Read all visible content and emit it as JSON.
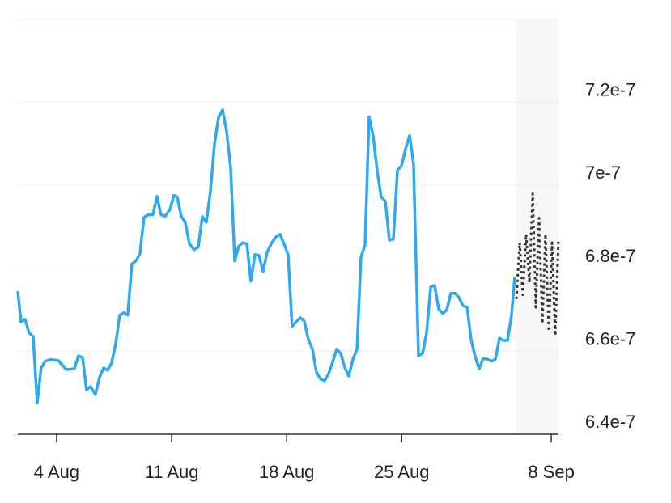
{
  "chart_data": {
    "type": "line",
    "ylim": [
      6.4e-07,
      7.4e-07
    ],
    "yticks": [
      6.4e-07,
      6.6e-07,
      6.8e-07,
      7e-07,
      7.2e-07
    ],
    "xlim": [
      -2.36,
      30.54
    ],
    "xticks": [
      {
        "value": 0,
        "label": "4 Aug"
      },
      {
        "value": 7,
        "label": "11 Aug"
      },
      {
        "value": 14,
        "label": "18 Aug"
      },
      {
        "value": 21,
        "label": "25 Aug"
      },
      {
        "value": 30.1,
        "label": "8 Sep"
      }
    ],
    "grid": true,
    "series": [
      {
        "color": "#2ea8f0",
        "line_style": "solid",
        "x": [
          -2.36,
          -2.17,
          -1.92,
          -1.67,
          -1.43,
          -1.18,
          -0.94,
          -0.69,
          -0.39,
          0.1,
          0.59,
          1.08,
          1.33,
          1.58,
          1.82,
          2.07,
          2.36,
          2.61,
          2.86,
          3.1,
          3.35,
          3.6,
          3.84,
          4.09,
          4.33,
          4.58,
          4.83,
          5.07,
          5.32,
          5.57,
          5.86,
          6.11,
          6.35,
          6.6,
          6.9,
          7.14,
          7.34,
          7.59,
          7.83,
          8.08,
          8.37,
          8.62,
          8.87,
          9.11,
          9.36,
          9.61,
          9.85,
          10.1,
          10.34,
          10.59,
          10.84,
          11.08,
          11.33,
          11.58,
          11.82,
          12.07,
          12.32,
          12.56,
          12.81,
          13.1,
          13.35,
          13.6,
          13.84,
          14.09,
          14.33,
          14.58,
          14.83,
          15.07,
          15.32,
          15.57,
          15.81,
          16.06,
          16.31,
          16.55,
          16.8,
          17.04,
          17.29,
          17.54,
          17.78,
          18.03,
          18.28,
          18.52,
          18.77,
          19.01,
          19.26,
          19.51,
          19.75,
          20.0,
          20.25,
          20.49,
          20.74,
          20.99,
          21.23,
          21.48,
          21.72,
          22.02,
          22.27,
          22.51,
          22.76,
          23.0,
          23.25,
          23.5,
          23.74,
          23.99,
          24.24,
          24.48,
          24.73,
          24.98,
          25.22,
          25.47,
          25.71,
          25.96,
          26.21,
          26.45,
          26.7,
          26.95,
          27.19,
          27.44,
          27.68,
          27.88
        ],
        "values": [
          6.745e-07,
          6.671e-07,
          6.677e-07,
          6.644e-07,
          6.636e-07,
          6.476e-07,
          6.56e-07,
          6.576e-07,
          6.58e-07,
          6.578e-07,
          6.556e-07,
          6.558e-07,
          6.589e-07,
          6.585e-07,
          6.507e-07,
          6.515e-07,
          6.496e-07,
          6.537e-07,
          6.56e-07,
          6.554e-07,
          6.572e-07,
          6.619e-07,
          6.687e-07,
          6.693e-07,
          6.687e-07,
          6.81e-07,
          6.818e-07,
          6.835e-07,
          6.923e-07,
          6.929e-07,
          6.929e-07,
          6.974e-07,
          6.929e-07,
          6.925e-07,
          6.942e-07,
          6.976e-07,
          6.972e-07,
          6.925e-07,
          6.911e-07,
          6.859e-07,
          6.845e-07,
          6.851e-07,
          6.925e-07,
          6.911e-07,
          6.985e-07,
          7.1e-07,
          7.163e-07,
          7.182e-07,
          7.132e-07,
          7.044e-07,
          6.818e-07,
          6.853e-07,
          6.862e-07,
          6.859e-07,
          6.769e-07,
          6.833e-07,
          6.831e-07,
          6.792e-07,
          6.839e-07,
          6.862e-07,
          6.876e-07,
          6.882e-07,
          6.859e-07,
          6.833e-07,
          6.66e-07,
          6.671e-07,
          6.681e-07,
          6.673e-07,
          6.628e-07,
          6.605e-07,
          6.55e-07,
          6.533e-07,
          6.529e-07,
          6.546e-07,
          6.574e-07,
          6.605e-07,
          6.595e-07,
          6.56e-07,
          6.54e-07,
          6.581e-07,
          6.605e-07,
          6.827e-07,
          6.857e-07,
          7.165e-07,
          7.12e-07,
          7.034e-07,
          6.972e-07,
          6.962e-07,
          6.868e-07,
          6.87e-07,
          7.036e-07,
          7.048e-07,
          7.087e-07,
          7.12e-07,
          7.052e-07,
          6.589e-07,
          6.595e-07,
          6.644e-07,
          6.755e-07,
          6.759e-07,
          6.702e-07,
          6.691e-07,
          6.7e-07,
          6.74e-07,
          6.74e-07,
          6.73e-07,
          6.71e-07,
          6.706e-07,
          6.628e-07,
          6.587e-07,
          6.558e-07,
          6.583e-07,
          6.581e-07,
          6.576e-07,
          6.581e-07,
          6.632e-07,
          6.626e-07,
          6.626e-07,
          6.687e-07,
          6.779e-07
        ]
      },
      {
        "color": "#333333",
        "line_style": "dotted",
        "x": [
          27.98,
          28.18,
          28.37,
          28.57,
          28.77,
          28.97,
          29.16,
          29.36,
          29.56,
          29.75,
          29.95,
          30.15,
          30.34,
          30.54
        ],
        "values": [
          6.726e-07,
          6.862e-07,
          6.736e-07,
          6.882e-07,
          6.765e-07,
          6.98e-07,
          6.706e-07,
          6.921e-07,
          6.667e-07,
          6.882e-07,
          6.648e-07,
          6.862e-07,
          6.638e-07,
          6.872e-07
        ]
      }
    ]
  }
}
